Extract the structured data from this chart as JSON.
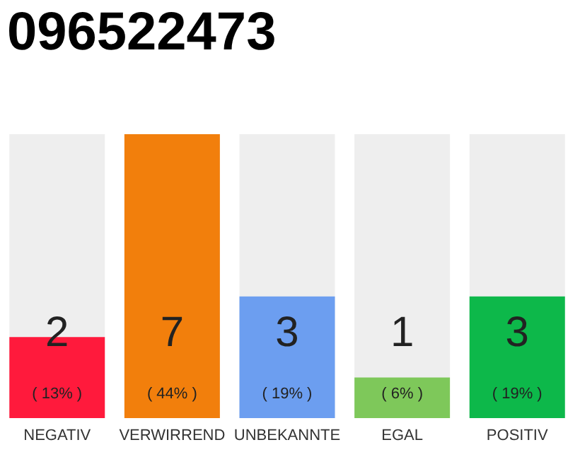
{
  "chart_data": {
    "type": "bar",
    "title": "096522473",
    "categories": [
      "NEGATIV",
      "VERWIRREND",
      "UNBEKANNTE",
      "EGAL",
      "POSITIV"
    ],
    "values": [
      2,
      7,
      3,
      1,
      3
    ],
    "colors": [
      "#ff1a3c",
      "#f27f0c",
      "#6c9ef0",
      "#7ec85a",
      "#0db84a"
    ],
    "ylim": [
      0,
      7
    ],
    "data_labels": true,
    "annotations": [
      {
        "text": "( 13% )",
        "x": "NEGATIV",
        "y": 0
      },
      {
        "text": "( 44% )",
        "x": "VERWIRREND",
        "y": 0
      },
      {
        "text": "( 19% )",
        "x": "UNBEKANNTE",
        "y": 0
      },
      {
        "text": "( 6% )",
        "x": "EGAL",
        "y": 0
      },
      {
        "text": "( 19% )",
        "x": "POSITIV",
        "y": 0
      }
    ]
  }
}
